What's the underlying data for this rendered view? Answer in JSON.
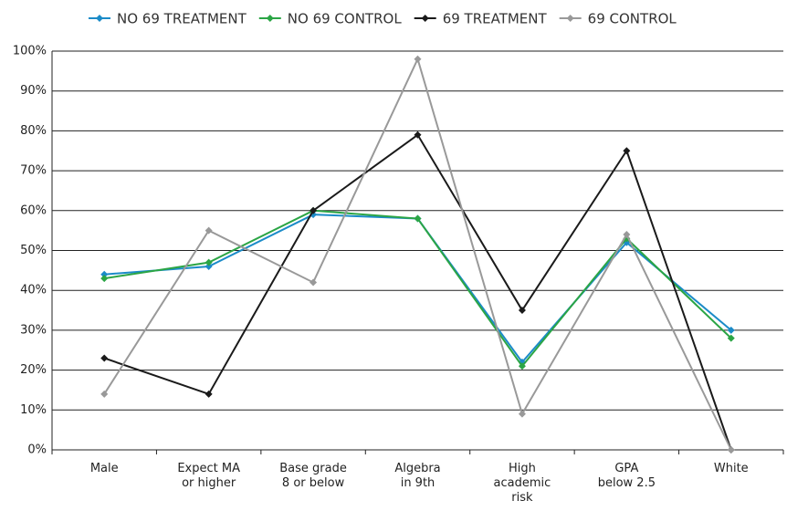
{
  "chart_data": {
    "type": "line",
    "categories": [
      "Male",
      "Expect MA\nor higher",
      "Base grade\n8 or below",
      "Algebra\nin 9th",
      "High\nacademic\nrisk",
      "GPA\nbelow 2.5",
      "White"
    ],
    "series": [
      {
        "name": "NO 69 TREATMENT",
        "color": "#1b8bc8",
        "values": [
          44,
          46,
          59,
          58,
          22,
          52,
          30
        ]
      },
      {
        "name": "NO 69 CONTROL",
        "color": "#2ba545",
        "values": [
          43,
          47,
          60,
          58,
          21,
          53,
          28
        ]
      },
      {
        "name": "69 TREATMENT",
        "color": "#1a1a1a",
        "values": [
          23,
          14,
          60,
          79,
          35,
          75,
          0
        ]
      },
      {
        "name": "69 CONTROL",
        "color": "#999999",
        "values": [
          14,
          55,
          42,
          98,
          9,
          54,
          0
        ]
      }
    ],
    "ylim": [
      0,
      100
    ],
    "yticks": [
      {
        "value": 0,
        "label": "0%"
      },
      {
        "value": 10,
        "label": "10%"
      },
      {
        "value": 20,
        "label": "20%"
      },
      {
        "value": 30,
        "label": "30%"
      },
      {
        "value": 40,
        "label": "40%"
      },
      {
        "value": 50,
        "label": "50%"
      },
      {
        "value": 60,
        "label": "60%"
      },
      {
        "value": 70,
        "label": "70%"
      },
      {
        "value": 80,
        "label": "80%"
      },
      {
        "value": 90,
        "label": "90%"
      },
      {
        "value": 100,
        "label": "100%"
      }
    ],
    "grid": true,
    "legend": "top"
  }
}
